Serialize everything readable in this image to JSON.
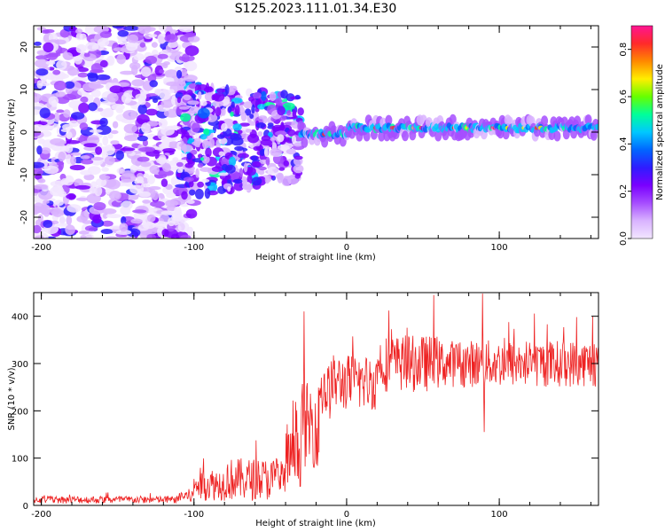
{
  "figure": {
    "title": "S125.2023.111.01.34.E30"
  },
  "chart_data": [
    {
      "type": "heatmap",
      "name": "spectrogram",
      "xlabel": "Height of straight line (km)",
      "ylabel": "Frequency (Hz)",
      "xlim": [
        -205,
        165
      ],
      "ylim": [
        -25,
        25
      ],
      "xticks": [
        -200,
        -100,
        0,
        100
      ],
      "yticks": [
        -20,
        -10,
        0,
        10,
        20
      ],
      "colorbar": {
        "label": "Normalized spectral amplitude",
        "range": [
          0.0,
          0.9
        ],
        "ticks": [
          "0.0",
          "0.2",
          "0.4",
          "0.6",
          "0.8"
        ],
        "colormap": [
          "#f2e6ff",
          "#d9b3ff",
          "#a64dff",
          "#7a00ff",
          "#2f1cff",
          "#0066ff",
          "#00c8ff",
          "#00ff99",
          "#66ff00",
          "#ffee00",
          "#ff8800",
          "#ff2a2a",
          "#ff1493"
        ]
      },
      "features": {
        "noise_region_km": [
          -205,
          -100
        ],
        "scatter_region_km": [
          -110,
          -30
        ],
        "signal_band_start_km": -30,
        "signal_band_center_hz": [
          -0.5,
          1.0
        ],
        "signal_band_halfwidth_hz": 1.5
      }
    },
    {
      "type": "line",
      "name": "snr",
      "xlabel": "Height of straight line (km)",
      "ylabel": "SNR (10 * v/v)",
      "xlim": [
        -205,
        165
      ],
      "ylim": [
        0,
        450
      ],
      "xticks": [
        -200,
        -100,
        0,
        100
      ],
      "yticks": [
        0,
        100,
        200,
        300,
        400
      ],
      "color": "#ee2222",
      "segments": [
        {
          "x": [
            -205,
            -110
          ],
          "mean": 12,
          "noise": 8
        },
        {
          "x": [
            -110,
            -100
          ],
          "mean": 20,
          "noise": 15
        },
        {
          "x": [
            -100,
            -80
          ],
          "mean": 45,
          "noise": 35
        },
        {
          "x": [
            -80,
            -40
          ],
          "mean": 55,
          "noise": 45
        },
        {
          "x": [
            -40,
            -30
          ],
          "mean": 100,
          "noise": 60
        },
        {
          "x": [
            -30,
            -18
          ],
          "mean": 170,
          "noise": 90
        },
        {
          "x": [
            -18,
            -10
          ],
          "mean": 240,
          "noise": 60
        },
        {
          "x": [
            -10,
            20
          ],
          "mean": 260,
          "noise": 60
        },
        {
          "x": [
            20,
            60
          ],
          "mean": 300,
          "noise": 60
        },
        {
          "x": [
            60,
            165
          ],
          "mean": 300,
          "noise": 50
        }
      ],
      "spikes": [
        {
          "x": -28,
          "y": 410
        },
        {
          "x": 57,
          "y": 445
        },
        {
          "x": 89,
          "y": 448
        },
        {
          "x": 90,
          "y": 155
        },
        {
          "x": 161,
          "y": 400
        }
      ]
    }
  ]
}
